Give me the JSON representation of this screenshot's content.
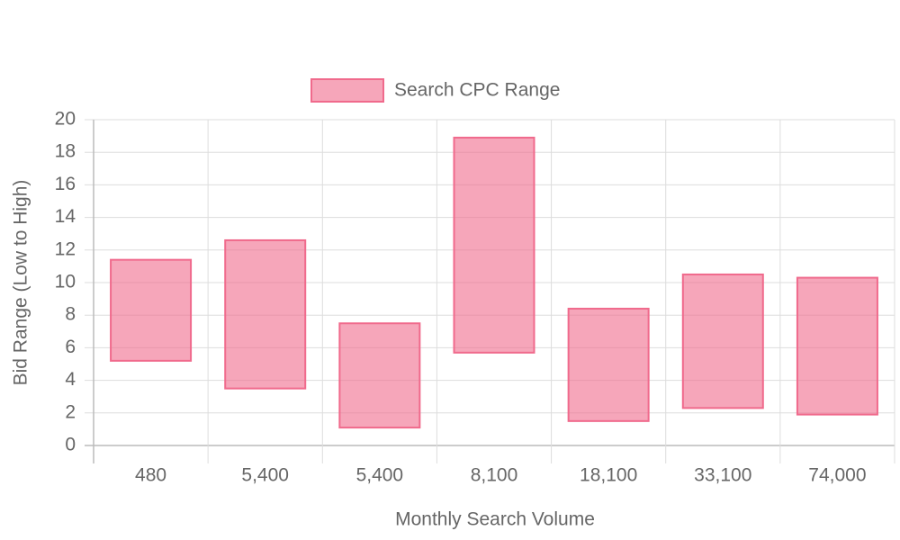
{
  "chart_data": {
    "type": "floating-bar",
    "categories": [
      "480",
      "5,400",
      "5,400",
      "8,100",
      "18,100",
      "33,100",
      "74,000"
    ],
    "series": [
      {
        "name": "Search CPC Range",
        "color": "#f06a8c",
        "values": [
          [
            5.2,
            11.4
          ],
          [
            3.5,
            12.6
          ],
          [
            1.1,
            7.5
          ],
          [
            5.7,
            18.9
          ],
          [
            1.5,
            8.4
          ],
          [
            2.3,
            10.5
          ],
          [
            1.9,
            10.3
          ]
        ]
      }
    ],
    "xlabel": "Monthly Search Volume",
    "ylabel": "Bid Range (Low to High)",
    "ylim": [
      0,
      20
    ],
    "yticks": [
      0,
      2,
      4,
      6,
      8,
      10,
      12,
      14,
      16,
      18,
      20
    ],
    "grid": true,
    "legend": "top"
  }
}
